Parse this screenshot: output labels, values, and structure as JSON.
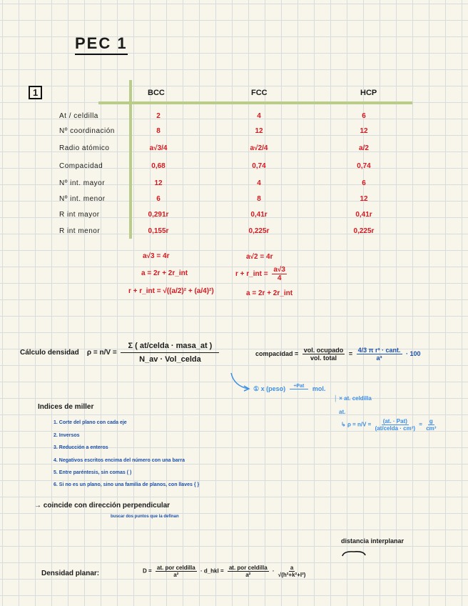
{
  "title": "PEC 1",
  "section_number": "1",
  "table": {
    "headers": [
      "BCC",
      "FCC",
      "HCP"
    ],
    "rows": [
      {
        "label": "At / celdilla",
        "values": [
          "2",
          "4",
          "6"
        ]
      },
      {
        "label": "Nº coordinación",
        "values": [
          "8",
          "12",
          "12"
        ]
      },
      {
        "label": "Radio atómico",
        "values": [
          "a√3/4",
          "a√2/4",
          "a/2"
        ]
      },
      {
        "label": "Compacidad",
        "values": [
          "0,68",
          "0,74",
          "0,74"
        ]
      },
      {
        "label": "Nº int. mayor",
        "values": [
          "12",
          "4",
          "6"
        ]
      },
      {
        "label": "Nº int. menor",
        "values": [
          "6",
          "8",
          "12"
        ]
      },
      {
        "label": "R int mayor",
        "values": [
          "0,291r",
          "0,41r",
          "0,41r"
        ]
      },
      {
        "label": "R int menor",
        "values": [
          "0,155r",
          "0,225r",
          "0,225r"
        ]
      }
    ]
  },
  "bcc_formulas": [
    "a√3 = 4r",
    "a = 2r + 2r_int",
    "r + r_int = √((a/2)² + (a/4)²)"
  ],
  "fcc_formulas": {
    "f1": "a√2 = 4r",
    "f2_left": "r + r_int =",
    "f2_num": "a√3",
    "f2_den": "4",
    "f3": "a = 2r + 2r_int"
  },
  "density": {
    "label": "Cálculo densidad",
    "lhs": "ρ = n/V =",
    "num": "Σ ( at/celda · masa_at )",
    "den": "N_av · Vol_celda"
  },
  "compacity": {
    "label": "compacidad =",
    "num1": "vol. ocupado",
    "den1": "vol. total",
    "eq": "=",
    "num2": "4/3 π r³ · cant.",
    "den2": "a³",
    "tail": "· 100"
  },
  "density_steps": {
    "s1": "① x (peso)",
    "s1_arrow": "÷Pat",
    "s1_end": "mol.",
    "s2": "× at. celdilla",
    "s3": "at.",
    "s4": "ρ = n/V =",
    "s4_num": "(at. · Pat)",
    "s4_den": "(at/celda · cm³)",
    "s4_eq": "=",
    "s4_res_num": "g",
    "s4_res_den": "cm³"
  },
  "miller": {
    "title": "Indices de miller",
    "items": [
      "1. Corte del plano con cada eje",
      "2. Inversos",
      "3. Reducción a enteros",
      "4. Negativos escritos encima del número con una barra",
      "5. Entre paréntesis, sin comas ( )",
      "6. Si no es un plano, sino una familia de planos, con llaves { }"
    ],
    "note": "→ coincide con dirección perpendicular",
    "subnote": "buscar dos puntos que la definan"
  },
  "planar": {
    "annotation": "distancia interplanar",
    "label": "Densidad planar:",
    "lhs": "D =",
    "num1": "at. por celdilla",
    "den1": "a²",
    "mid": "· d_hkl =",
    "num2": "at. por celdilla",
    "den2": "a²",
    "dot": "·",
    "num3": "a",
    "den3": "√(h²+k²+l²)"
  },
  "colors": {
    "ink": "#1b1b1b",
    "red": "#d7171f",
    "blue": "#1c4fa8",
    "light_blue": "#3c8ee6",
    "table_lines": "#b9cc8a",
    "paper": "#f8f6ea"
  }
}
